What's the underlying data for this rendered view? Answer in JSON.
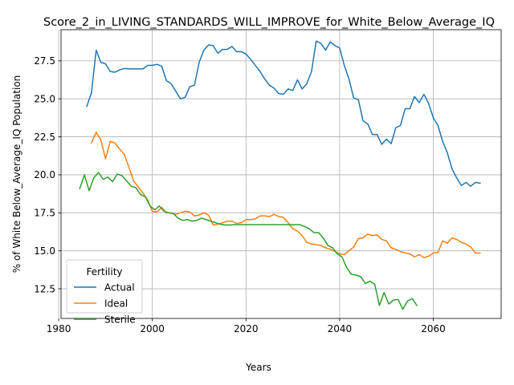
{
  "chart_data": {
    "type": "line",
    "title": "Score_2_in_LIVING_STANDARDS_WILL_IMPROVE_for_White_Below_Average_IQ",
    "xlabel": "Years",
    "ylabel": "% of White Below_Average_IQ Population",
    "xlim": [
      1980.5,
      2074.5
    ],
    "ylim": [
      10.55,
      29.55
    ],
    "x_ticks": [
      1980,
      2000,
      2020,
      2040,
      2060
    ],
    "y_ticks": [
      12.5,
      15.0,
      17.5,
      20.0,
      22.5,
      25.0,
      27.5
    ],
    "y_tick_labels": [
      "12.5",
      "15.0",
      "17.5",
      "20.0",
      "22.5",
      "25.0",
      "27.5"
    ],
    "grid": true,
    "legend": {
      "title": "Fertility",
      "placement": "lower-left"
    },
    "series": [
      {
        "name": "Actual",
        "color": "#1f77b4",
        "points": [
          [
            1986,
            24.5
          ],
          [
            1987,
            25.4
          ],
          [
            1988,
            28.2
          ],
          [
            1989,
            27.4
          ],
          [
            1990,
            27.3
          ],
          [
            1991,
            26.8
          ],
          [
            1992,
            26.75
          ],
          [
            1993,
            26.9
          ],
          [
            1994,
            27.0
          ],
          [
            1995,
            26.97
          ],
          [
            1996,
            26.97
          ],
          [
            1997,
            26.97
          ],
          [
            1998,
            26.97
          ],
          [
            1999,
            27.2
          ],
          [
            2000,
            27.2
          ],
          [
            2001,
            27.27
          ],
          [
            2002,
            27.15
          ],
          [
            2003,
            26.2
          ],
          [
            2004,
            26.0
          ],
          [
            2005,
            25.5
          ],
          [
            2006,
            25.0
          ],
          [
            2007,
            25.1
          ],
          [
            2008,
            25.8
          ],
          [
            2009,
            25.9
          ],
          [
            2010,
            27.4
          ],
          [
            2011,
            28.2
          ],
          [
            2012,
            28.55
          ],
          [
            2013,
            28.5
          ],
          [
            2014,
            28.0
          ],
          [
            2015,
            28.25
          ],
          [
            2016,
            28.25
          ],
          [
            2017,
            28.45
          ],
          [
            2018,
            28.1
          ],
          [
            2019,
            28.1
          ],
          [
            2020,
            27.95
          ],
          [
            2021,
            27.6
          ],
          [
            2022,
            27.2
          ],
          [
            2023,
            26.8
          ],
          [
            2024,
            26.3
          ],
          [
            2025,
            25.9
          ],
          [
            2026,
            25.7
          ],
          [
            2027,
            25.35
          ],
          [
            2028,
            25.3
          ],
          [
            2029,
            25.65
          ],
          [
            2030,
            25.55
          ],
          [
            2031,
            26.25
          ],
          [
            2032,
            25.65
          ],
          [
            2033,
            26.0
          ],
          [
            2034,
            26.8
          ],
          [
            2035,
            28.8
          ],
          [
            2036,
            28.65
          ],
          [
            2037,
            28.2
          ],
          [
            2038,
            28.75
          ],
          [
            2039,
            28.5
          ],
          [
            2040,
            28.35
          ],
          [
            2041,
            27.2
          ],
          [
            2042,
            26.3
          ],
          [
            2043,
            25.05
          ],
          [
            2044,
            24.95
          ],
          [
            2045,
            23.55
          ],
          [
            2046,
            23.35
          ],
          [
            2047,
            22.65
          ],
          [
            2048,
            22.65
          ],
          [
            2049,
            22.0
          ],
          [
            2050,
            22.35
          ],
          [
            2051,
            22.05
          ],
          [
            2052,
            23.1
          ],
          [
            2053,
            23.25
          ],
          [
            2054,
            24.35
          ],
          [
            2055,
            24.35
          ],
          [
            2056,
            25.15
          ],
          [
            2057,
            24.75
          ],
          [
            2058,
            25.3
          ],
          [
            2059,
            24.7
          ],
          [
            2060,
            23.75
          ],
          [
            2061,
            23.25
          ],
          [
            2062,
            22.2
          ],
          [
            2063,
            21.45
          ],
          [
            2064,
            20.4
          ],
          [
            2065,
            19.8
          ],
          [
            2066,
            19.3
          ],
          [
            2067,
            19.5
          ],
          [
            2068,
            19.25
          ],
          [
            2069,
            19.5
          ],
          [
            2070,
            19.45
          ]
        ]
      },
      {
        "name": "Ideal",
        "color": "#ff7f0e",
        "points": [
          [
            1987,
            22.1
          ],
          [
            1988,
            22.8
          ],
          [
            1989,
            22.3
          ],
          [
            1990,
            21.05
          ],
          [
            1991,
            22.2
          ],
          [
            1992,
            22.1
          ],
          [
            1993,
            21.7
          ],
          [
            1994,
            21.35
          ],
          [
            1995,
            20.5
          ],
          [
            1996,
            19.6
          ],
          [
            1997,
            19.2
          ],
          [
            1998,
            18.8
          ],
          [
            1999,
            18.35
          ],
          [
            2000,
            17.6
          ],
          [
            2001,
            17.55
          ],
          [
            2002,
            17.85
          ],
          [
            2003,
            17.5
          ],
          [
            2004,
            17.5
          ],
          [
            2005,
            17.4
          ],
          [
            2006,
            17.5
          ],
          [
            2007,
            17.6
          ],
          [
            2008,
            17.55
          ],
          [
            2009,
            17.3
          ],
          [
            2010,
            17.35
          ],
          [
            2011,
            17.5
          ],
          [
            2012,
            17.35
          ],
          [
            2013,
            16.7
          ],
          [
            2014,
            16.75
          ],
          [
            2015,
            16.85
          ],
          [
            2016,
            16.95
          ],
          [
            2017,
            16.95
          ],
          [
            2018,
            16.8
          ],
          [
            2019,
            16.85
          ],
          [
            2020,
            17.05
          ],
          [
            2021,
            17.05
          ],
          [
            2022,
            17.1
          ],
          [
            2023,
            17.3
          ],
          [
            2024,
            17.3
          ],
          [
            2025,
            17.25
          ],
          [
            2026,
            17.4
          ],
          [
            2027,
            17.25
          ],
          [
            2028,
            17.2
          ],
          [
            2029,
            16.85
          ],
          [
            2030,
            16.45
          ],
          [
            2031,
            16.3
          ],
          [
            2032,
            16.0
          ],
          [
            2033,
            15.55
          ],
          [
            2034,
            15.45
          ],
          [
            2035,
            15.4
          ],
          [
            2036,
            15.35
          ],
          [
            2037,
            15.2
          ],
          [
            2038,
            15.1
          ],
          [
            2039,
            14.95
          ],
          [
            2040,
            14.8
          ],
          [
            2041,
            14.75
          ],
          [
            2042,
            15.0
          ],
          [
            2043,
            15.25
          ],
          [
            2044,
            15.8
          ],
          [
            2045,
            15.85
          ],
          [
            2046,
            16.1
          ],
          [
            2047,
            16.0
          ],
          [
            2048,
            16.05
          ],
          [
            2049,
            15.75
          ],
          [
            2050,
            15.65
          ],
          [
            2051,
            15.2
          ],
          [
            2052,
            15.1
          ],
          [
            2053,
            14.95
          ],
          [
            2054,
            14.85
          ],
          [
            2055,
            14.8
          ],
          [
            2056,
            14.6
          ],
          [
            2057,
            14.75
          ],
          [
            2058,
            14.55
          ],
          [
            2059,
            14.65
          ],
          [
            2060,
            14.85
          ],
          [
            2061,
            14.9
          ],
          [
            2062,
            15.65
          ],
          [
            2063,
            15.5
          ],
          [
            2064,
            15.85
          ],
          [
            2065,
            15.75
          ],
          [
            2066,
            15.55
          ],
          [
            2067,
            15.45
          ],
          [
            2068,
            15.25
          ],
          [
            2069,
            14.85
          ],
          [
            2070,
            14.85
          ]
        ]
      },
      {
        "name": "Sterile",
        "color": "#2ca02c",
        "points": [
          [
            1984.5,
            19.1
          ],
          [
            1985.5,
            20.0
          ],
          [
            1986.5,
            18.95
          ],
          [
            1987.5,
            19.8
          ],
          [
            1988.5,
            20.15
          ],
          [
            1989.5,
            19.7
          ],
          [
            1990.5,
            19.85
          ],
          [
            1991.5,
            19.55
          ],
          [
            1992.5,
            20.05
          ],
          [
            1993.5,
            19.95
          ],
          [
            1994.5,
            19.6
          ],
          [
            1995.5,
            19.25
          ],
          [
            1996.5,
            19.15
          ],
          [
            1997.5,
            18.7
          ],
          [
            1998.5,
            18.55
          ],
          [
            1999.5,
            17.95
          ],
          [
            2000.5,
            17.7
          ],
          [
            2001.5,
            17.95
          ],
          [
            2002.5,
            17.6
          ],
          [
            2003.5,
            17.5
          ],
          [
            2004.5,
            17.45
          ],
          [
            2005.5,
            17.15
          ],
          [
            2006.5,
            17.0
          ],
          [
            2007.5,
            17.05
          ],
          [
            2008.5,
            16.95
          ],
          [
            2009.5,
            17.0
          ],
          [
            2010.5,
            17.15
          ],
          [
            2011.5,
            17.05
          ],
          [
            2012.5,
            16.95
          ],
          [
            2013.5,
            16.85
          ],
          [
            2014.5,
            16.75
          ],
          [
            2015.5,
            16.7
          ],
          [
            2016.5,
            16.7
          ],
          [
            2017.5,
            16.72
          ],
          [
            2018.5,
            16.72
          ],
          [
            2019.5,
            16.72
          ],
          [
            2020.5,
            16.72
          ],
          [
            2021.5,
            16.72
          ],
          [
            2022.5,
            16.72
          ],
          [
            2023.5,
            16.72
          ],
          [
            2024.5,
            16.72
          ],
          [
            2025.5,
            16.72
          ],
          [
            2026.5,
            16.72
          ],
          [
            2027.5,
            16.72
          ],
          [
            2028.5,
            16.72
          ],
          [
            2029.5,
            16.72
          ],
          [
            2030.5,
            16.72
          ],
          [
            2031.5,
            16.72
          ],
          [
            2032.5,
            16.6
          ],
          [
            2033.5,
            16.45
          ],
          [
            2034.5,
            16.2
          ],
          [
            2035.5,
            16.2
          ],
          [
            2036.5,
            15.85
          ],
          [
            2037.5,
            15.35
          ],
          [
            2038.5,
            15.2
          ],
          [
            2039.5,
            14.8
          ],
          [
            2040.5,
            14.6
          ],
          [
            2041.5,
            13.9
          ],
          [
            2042.5,
            13.45
          ],
          [
            2043.5,
            13.4
          ],
          [
            2044.5,
            13.3
          ],
          [
            2045.5,
            12.85
          ],
          [
            2046.5,
            13.0
          ],
          [
            2047.5,
            12.8
          ],
          [
            2048.5,
            11.4
          ],
          [
            2049.5,
            12.25
          ],
          [
            2050.5,
            11.5
          ],
          [
            2051.5,
            11.75
          ],
          [
            2052.5,
            11.8
          ],
          [
            2053.5,
            11.15
          ],
          [
            2054.5,
            11.7
          ],
          [
            2055.5,
            11.85
          ],
          [
            2056.5,
            11.4
          ]
        ]
      }
    ]
  }
}
